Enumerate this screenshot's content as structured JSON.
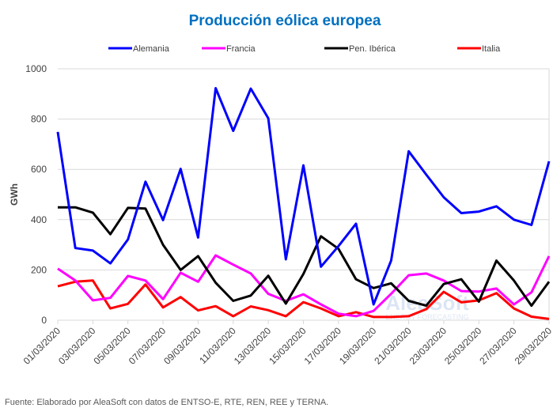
{
  "chart_data": {
    "type": "line",
    "title": "Producción eólica europea",
    "xlabel": "",
    "ylabel": "GWh",
    "ylim": [
      0,
      1000
    ],
    "yticks": [
      0,
      200,
      400,
      600,
      800,
      1000
    ],
    "grid": true,
    "legend_position": "top",
    "x": [
      "01/03/2020",
      "02/03/2020",
      "03/03/2020",
      "04/03/2020",
      "05/03/2020",
      "06/03/2020",
      "07/03/2020",
      "08/03/2020",
      "09/03/2020",
      "10/03/2020",
      "11/03/2020",
      "12/03/2020",
      "13/03/2020",
      "14/03/2020",
      "15/03/2020",
      "16/03/2020",
      "17/03/2020",
      "18/03/2020",
      "19/03/2020",
      "20/03/2020",
      "21/03/2020",
      "22/03/2020",
      "23/03/2020",
      "24/03/2020",
      "25/03/2020",
      "26/03/2020",
      "27/03/2020",
      "28/03/2020",
      "29/03/2020"
    ],
    "xtick_labels": [
      "01/03/2020",
      "03/03/2020",
      "05/03/2020",
      "07/03/2020",
      "09/03/2020",
      "11/03/2020",
      "13/03/2020",
      "15/03/2020",
      "17/03/2020",
      "19/03/2020",
      "21/03/2020",
      "23/03/2020",
      "25/03/2020",
      "27/03/2020",
      "29/03/2020"
    ],
    "series": [
      {
        "name": "Alemania",
        "color": "#0000FF",
        "values": [
          749,
          287,
          277,
          226,
          321,
          551,
          398,
          602,
          329,
          923,
          753,
          921,
          803,
          242,
          616,
          213,
          295,
          384,
          63,
          237,
          672,
          579,
          489,
          426,
          432,
          453,
          400,
          379,
          632
        ]
      },
      {
        "name": "Francia",
        "color": "#FF00FF",
        "values": [
          205,
          158,
          79,
          89,
          176,
          158,
          84,
          189,
          153,
          258,
          221,
          186,
          105,
          77,
          103,
          63,
          26,
          16,
          37,
          105,
          179,
          186,
          158,
          116,
          114,
          126,
          63,
          111,
          255
        ]
      },
      {
        "name": "Pen. Ibérica",
        "color": "#000000",
        "values": [
          449,
          449,
          428,
          342,
          447,
          444,
          300,
          200,
          255,
          149,
          77,
          98,
          177,
          66,
          184,
          334,
          284,
          163,
          128,
          147,
          77,
          58,
          144,
          163,
          74,
          237,
          158,
          58,
          153
        ]
      },
      {
        "name": "Italia",
        "color": "#FF0000",
        "values": [
          135,
          153,
          158,
          47,
          65,
          142,
          51,
          92,
          39,
          56,
          16,
          55,
          40,
          16,
          72,
          47,
          16,
          32,
          13,
          13,
          16,
          44,
          113,
          71,
          79,
          108,
          47,
          14,
          5
        ]
      }
    ]
  },
  "watermark": {
    "brand": "AleaSoft",
    "tagline": "ENERGY FORECASTING"
  },
  "source_note": "Fuente: Elaborado por AleaSoft con datos de ENTSO-E, RTE, REN, REE y TERNA.",
  "colors": {
    "title": "#0070C0",
    "grid": "#D9D9D9",
    "text": "#404040"
  }
}
